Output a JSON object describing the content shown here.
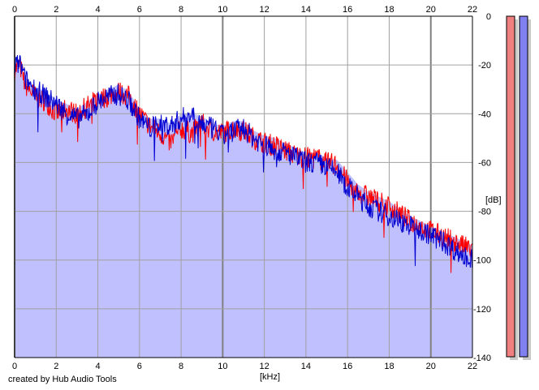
{
  "app": {
    "credit_text": "created by Hub Audio Tools"
  },
  "colors": {
    "background": "#ffffff",
    "area_fill": "#c0c0ff",
    "grid": "#a0a0a0",
    "major_grid": "#808080",
    "red_series": "#ff0000",
    "blue_series": "#0000d0",
    "meter_left": "#f08080",
    "meter_right": "#8080f0",
    "meter_shadow": "#c8c8c8"
  },
  "chart_data": {
    "type": "line",
    "title": "",
    "xlabel": "[kHz]",
    "ylabel": "[dB]",
    "xlim": [
      0,
      22
    ],
    "ylim": [
      -140,
      0
    ],
    "x_ticks": [
      "0",
      "2",
      "4",
      "6",
      "8",
      "10",
      "12",
      "14",
      "16",
      "18",
      "20",
      "22"
    ],
    "y_ticks": [
      "0",
      "-20",
      "-40",
      "-60",
      "-80",
      "-100",
      "-120",
      "-140"
    ],
    "grid": true,
    "x_axis_position": "top-and-bottom",
    "y_axis_position": "right",
    "series": [
      {
        "color": "#ff0000",
        "x": [
          0,
          0.25,
          0.5,
          1,
          1.5,
          2,
          2.5,
          3,
          3.5,
          4,
          4.5,
          5,
          5.5,
          6,
          6.5,
          7,
          7.5,
          8,
          8.5,
          9,
          9.5,
          10,
          10.5,
          11,
          11.5,
          12,
          12.5,
          13,
          13.5,
          14,
          14.5,
          15,
          15.5,
          16,
          16.5,
          17,
          17.5,
          18,
          18.5,
          19,
          19.5,
          20,
          20.5,
          21,
          21.5,
          22
        ],
        "values": [
          -22,
          -20,
          -28,
          -33,
          -35,
          -40,
          -38,
          -40,
          -37,
          -34,
          -33,
          -31,
          -33,
          -40,
          -45,
          -48,
          -52,
          -46,
          -48,
          -44,
          -47,
          -48,
          -46,
          -47,
          -50,
          -52,
          -53,
          -55,
          -57,
          -58,
          -58,
          -60,
          -61,
          -68,
          -72,
          -74,
          -76,
          -78,
          -81,
          -84,
          -86,
          -88,
          -90,
          -92,
          -94,
          -96
        ]
      },
      {
        "color": "#0000d0",
        "x": [
          0,
          0.25,
          0.5,
          1,
          1.5,
          2,
          2.5,
          3,
          3.5,
          4,
          4.5,
          5,
          5.5,
          6,
          6.5,
          7,
          7.5,
          8,
          8.5,
          9,
          9.5,
          10,
          10.5,
          11,
          11.5,
          12,
          12.5,
          13,
          13.5,
          14,
          14.5,
          15,
          15.5,
          16,
          16.5,
          17,
          17.5,
          18,
          18.5,
          19,
          19.5,
          20,
          20.5,
          21,
          21.5,
          22
        ],
        "values": [
          -21,
          -19,
          -26,
          -30,
          -33,
          -36,
          -40,
          -42,
          -40,
          -35,
          -33,
          -32,
          -35,
          -42,
          -46,
          -44,
          -45,
          -42,
          -40,
          -44,
          -46,
          -49,
          -47,
          -46,
          -50,
          -53,
          -55,
          -56,
          -58,
          -60,
          -60,
          -62,
          -64,
          -70,
          -74,
          -78,
          -80,
          -82,
          -84,
          -86,
          -88,
          -90,
          -92,
          -95,
          -98,
          -100
        ]
      }
    ],
    "area_envelope": {
      "x": [
        0,
        0.25,
        0.5,
        1,
        1.5,
        2,
        2.5,
        3,
        3.5,
        4,
        4.5,
        5,
        5.5,
        6,
        6.5,
        7,
        7.5,
        8,
        8.5,
        9,
        9.5,
        10,
        10.5,
        11,
        11.5,
        12,
        12.5,
        13,
        13.5,
        14,
        14.5,
        15,
        15.5,
        16,
        16.5,
        17,
        17.5,
        18,
        18.5,
        19,
        19.5,
        20,
        20.5,
        21,
        21.5,
        22
      ],
      "values": [
        -20,
        -18,
        -25,
        -29,
        -31,
        -34,
        -36,
        -38,
        -35,
        -32,
        -30,
        -28,
        -31,
        -38,
        -42,
        -42,
        -44,
        -40,
        -40,
        -41,
        -44,
        -45,
        -43,
        -43,
        -47,
        -49,
        -50,
        -52,
        -54,
        -56,
        -56,
        -58,
        -59,
        -64,
        -69,
        -72,
        -74,
        -76,
        -79,
        -82,
        -84,
        -86,
        -88,
        -90,
        -92,
        -94
      ]
    },
    "level_meters": [
      {
        "channel": "left",
        "color": "#f08080",
        "level": 1.0
      },
      {
        "channel": "right",
        "color": "#8080f0",
        "level": 1.0
      }
    ]
  }
}
